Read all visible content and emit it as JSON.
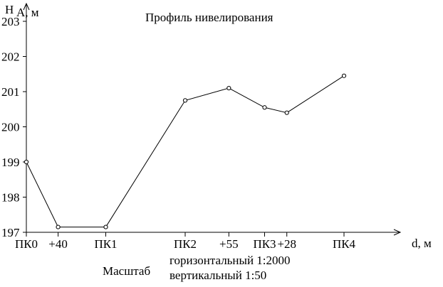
{
  "chart_data": {
    "type": "line",
    "title": "Профиль нивелирования",
    "ylabel_main": "Н",
    "ylabel_sub": "А, м",
    "xlabel": "d, м",
    "categories": [
      "ПК0",
      "+40",
      "ПК1",
      "ПК2",
      "+55",
      "ПК3",
      "+28",
      "ПК4"
    ],
    "x": [
      0,
      40,
      100,
      200,
      255,
      300,
      328,
      400
    ],
    "y": [
      199.0,
      197.15,
      197.15,
      200.75,
      201.1,
      200.55,
      200.4,
      201.45
    ],
    "y_ticks": [
      197,
      198,
      199,
      200,
      201,
      202,
      203
    ],
    "ylim": [
      197,
      203
    ],
    "xlim": [
      0,
      460
    ],
    "grid": false,
    "marker": "open-circle"
  },
  "scale_note": {
    "label": "Масштаб",
    "horizontal": "горизонтальный  1:2000",
    "vertical": "вертикальный 1:50"
  }
}
